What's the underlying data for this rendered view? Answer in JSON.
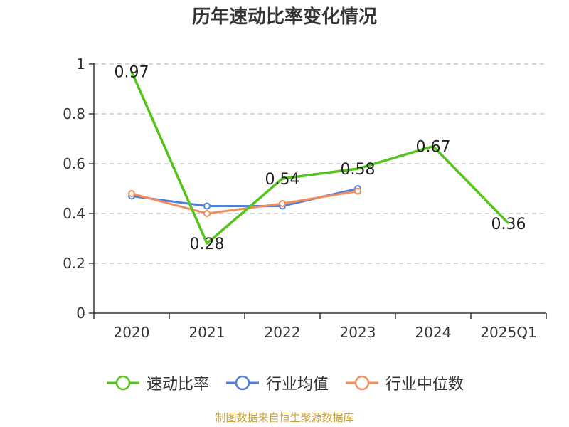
{
  "chart_data": {
    "type": "line",
    "title": "历年速动比率变化情况",
    "categories": [
      "2020",
      "2021",
      "2022",
      "2023",
      "2024",
      "2025Q1"
    ],
    "ylim": [
      0,
      1
    ],
    "yticks": [
      "0",
      "0.2",
      "0.4",
      "0.6",
      "0.8",
      "1"
    ],
    "ytick_values": [
      0,
      0.2,
      0.4,
      0.6,
      0.8,
      1
    ],
    "grid": "horizontal dashed",
    "legend_position": "bottom",
    "series": [
      {
        "name": "速动比率",
        "color": "#52c41a",
        "values": [
          0.97,
          0.28,
          0.54,
          0.58,
          0.67,
          0.36
        ],
        "labels": [
          "0.97",
          "0.28",
          "0.54",
          "0.58",
          "0.67",
          "0.36"
        ]
      },
      {
        "name": "行业均值",
        "color": "#4f7fe0",
        "values": [
          0.47,
          0.43,
          0.43,
          0.5,
          null,
          null
        ]
      },
      {
        "name": "行业中位数",
        "color": "#f28e5a",
        "values": [
          0.48,
          0.4,
          0.44,
          0.49,
          null,
          null
        ]
      }
    ]
  },
  "source_note": "制图数据来自恒生聚源数据库"
}
